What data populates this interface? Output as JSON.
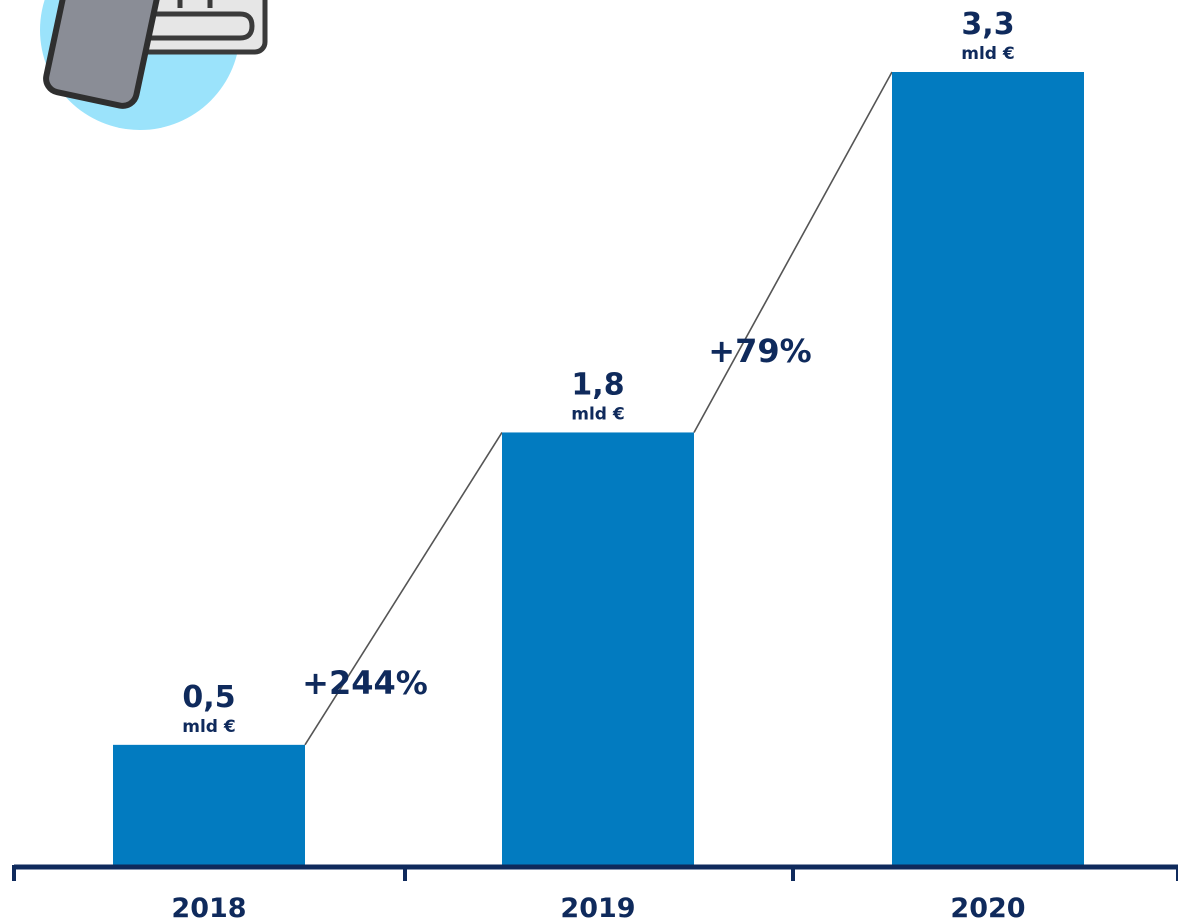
{
  "colors": {
    "bar": "#027bc0",
    "text": "#0f2a5c",
    "axis": "#0f2a5c",
    "connector": "#555555",
    "icon_circle": "#9be3fb",
    "icon_phone": "#8a8d96"
  },
  "decoration": {
    "icon": "phone-over-card-reader-icon"
  },
  "chart_data": {
    "type": "bar",
    "categories": [
      "2018",
      "2019",
      "2020"
    ],
    "values": [
      0.5,
      1.8,
      3.3
    ],
    "value_labels": [
      "0,5",
      "1,8",
      "3,3"
    ],
    "unit_label": "mld €",
    "growth_labels": [
      "+244%",
      "+79%"
    ],
    "ylim": [
      0,
      3.3
    ],
    "grid": false,
    "legend": "none",
    "title": "",
    "xlabel": "",
    "ylabel": ""
  }
}
